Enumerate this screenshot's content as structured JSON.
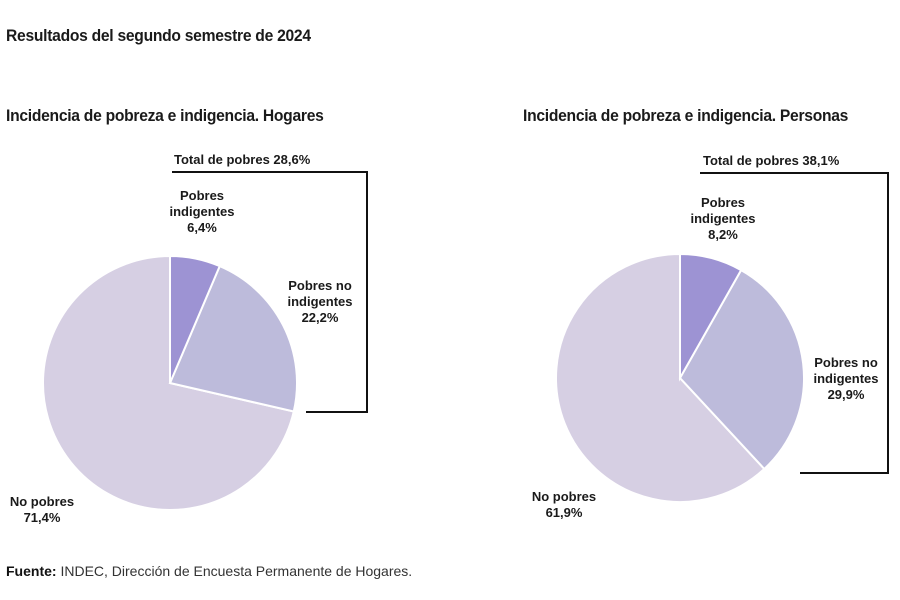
{
  "page": {
    "title": "Resultados del segundo semestre de 2024",
    "source_label": "Fuente:",
    "source_text": "INDEC, Dirección de Encuesta Permanente de Hogares."
  },
  "colors": {
    "pobres_indigentes": "#9d93d3",
    "pobres_no_indigentes": "#bdbbdb",
    "no_pobres": "#d6cfe3",
    "bracket": "#111111"
  },
  "charts": [
    {
      "title": "Incidencia de pobreza e indigencia. Hogares",
      "total_label": "Total de pobres 28,6%",
      "slices": [
        {
          "name_l1": "Pobres",
          "name_l2": "indigentes",
          "value_label": "6,4%"
        },
        {
          "name_l1": "Pobres no",
          "name_l2": "indigentes",
          "value_label": "22,2%"
        },
        {
          "name_l1": "No pobres",
          "name_l2": "",
          "value_label": "71,4%"
        }
      ]
    },
    {
      "title": "Incidencia de pobreza e indigencia. Personas",
      "total_label": "Total de pobres 38,1%",
      "slices": [
        {
          "name_l1": "Pobres",
          "name_l2": "indigentes",
          "value_label": "8,2%"
        },
        {
          "name_l1": "Pobres no",
          "name_l2": "indigentes",
          "value_label": "29,9%"
        },
        {
          "name_l1": "No pobres",
          "name_l2": "",
          "value_label": "61,9%"
        }
      ]
    }
  ],
  "chart_data": [
    {
      "type": "pie",
      "title": "Incidencia de pobreza e indigencia. Hogares",
      "categories": [
        "Pobres indigentes",
        "Pobres no indigentes",
        "No pobres"
      ],
      "values": [
        6.4,
        22.2,
        71.4
      ],
      "annotations": [
        "Total de pobres 28,6%"
      ],
      "start_angle": "12 o'clock, clockwise",
      "legend": "none (direct labels)"
    },
    {
      "type": "pie",
      "title": "Incidencia de pobreza e indigencia. Personas",
      "categories": [
        "Pobres indigentes",
        "Pobres no indigentes",
        "No pobres"
      ],
      "values": [
        8.2,
        29.9,
        61.9
      ],
      "annotations": [
        "Total de pobres 38,1%"
      ],
      "start_angle": "12 o'clock, clockwise",
      "legend": "none (direct labels)"
    }
  ]
}
